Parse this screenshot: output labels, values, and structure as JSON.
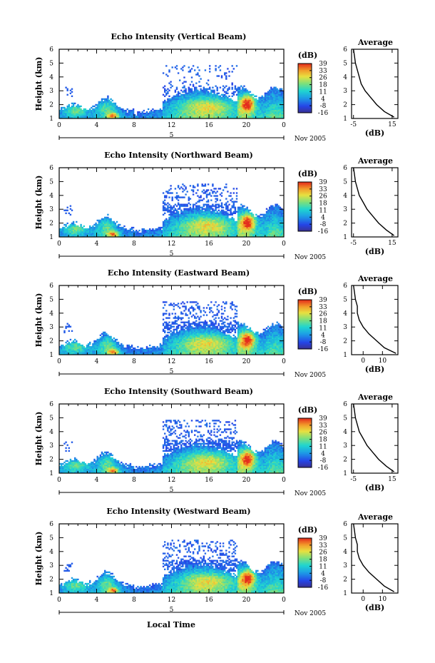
{
  "figure": {
    "date_label": "Nov 2005",
    "xlabel": "Local Time",
    "colorbar_unit": "(dB)",
    "colorbar_ticks": [
      -16,
      -8,
      4,
      11,
      18,
      26,
      33,
      39
    ],
    "height_label": "Height (km)",
    "average_title": "Average",
    "average_xlabel": "(dB)"
  },
  "chart_data": [
    {
      "type": "heatmap",
      "title": "Echo Intensity (Vertical Beam)",
      "xlabel": "Local Time",
      "ylabel": "Height (km)",
      "x_ticks": [
        "0",
        "4",
        "8",
        "12",
        "16",
        "20",
        "0"
      ],
      "xlim": [
        0,
        24
      ],
      "ylim": [
        1,
        6
      ],
      "y_ticks": [
        1,
        2,
        3,
        4,
        5,
        6
      ],
      "date_marker": "5",
      "colorbar": {
        "unit": "dB",
        "ticks": [
          -16,
          -8,
          4,
          11,
          18,
          26,
          33,
          39
        ]
      },
      "average_profile": {
        "title": "Average",
        "xlabel": "(dB)",
        "x_ticks": [
          -5,
          15
        ],
        "xlim": [
          -6,
          18
        ],
        "ylim": [
          1,
          6
        ],
        "height": [
          1.1,
          1.5,
          2.0,
          2.5,
          3.0,
          3.5,
          4.0,
          4.5,
          5.0,
          5.5,
          6.0
        ],
        "intensity": [
          16,
          11,
          7,
          4,
          1,
          -1,
          -2,
          -3,
          -4,
          -4.5,
          -5
        ]
      }
    },
    {
      "type": "heatmap",
      "title": "Echo Intensity (Northward Beam)",
      "xlabel": "Local Time",
      "ylabel": "Height (km)",
      "x_ticks": [
        "0",
        "4",
        "8",
        "12",
        "16",
        "20",
        "0"
      ],
      "xlim": [
        0,
        24
      ],
      "ylim": [
        1,
        6
      ],
      "y_ticks": [
        1,
        2,
        3,
        4,
        5,
        6
      ],
      "date_marker": "5",
      "colorbar": {
        "unit": "dB",
        "ticks": [
          -16,
          -8,
          4,
          11,
          18,
          26,
          33,
          39
        ]
      },
      "average_profile": {
        "title": "Average",
        "xlabel": "(dB)",
        "x_ticks": [
          -5,
          15
        ],
        "xlim": [
          -6,
          18
        ],
        "ylim": [
          1,
          6
        ],
        "height": [
          1.1,
          1.5,
          2.0,
          2.5,
          3.0,
          3.5,
          4.0,
          4.5,
          5.0,
          5.5,
          6.0
        ],
        "intensity": [
          16,
          12,
          8,
          5,
          2,
          0,
          -2,
          -3,
          -4,
          -4.5,
          -5
        ]
      }
    },
    {
      "type": "heatmap",
      "title": "Echo Intensity (Eastward Beam)",
      "xlabel": "Local Time",
      "ylabel": "Height (km)",
      "x_ticks": [
        "0",
        "4",
        "8",
        "12",
        "16",
        "20",
        "0"
      ],
      "xlim": [
        0,
        24
      ],
      "ylim": [
        1,
        6
      ],
      "y_ticks": [
        1,
        2,
        3,
        4,
        5,
        6
      ],
      "date_marker": "5",
      "colorbar": {
        "unit": "dB",
        "ticks": [
          -16,
          -8,
          4,
          11,
          18,
          26,
          33,
          39
        ]
      },
      "average_profile": {
        "title": "Average",
        "xlabel": "(dB)",
        "x_ticks": [
          0,
          10
        ],
        "xlim": [
          -6,
          18
        ],
        "ylim": [
          1,
          6
        ],
        "height": [
          1.1,
          1.5,
          2.0,
          2.5,
          3.0,
          3.5,
          4.0,
          4.5,
          5.0,
          5.5,
          6.0
        ],
        "intensity": [
          17,
          11,
          7,
          3,
          0,
          -2,
          -3,
          -3,
          -4,
          -4.5,
          -5
        ]
      }
    },
    {
      "type": "heatmap",
      "title": "Echo Intensity (Southward Beam)",
      "xlabel": "Local Time",
      "ylabel": "Height (km)",
      "x_ticks": [
        "0",
        "4",
        "8",
        "12",
        "16",
        "20",
        "0"
      ],
      "xlim": [
        0,
        24
      ],
      "ylim": [
        1,
        6
      ],
      "y_ticks": [
        1,
        2,
        3,
        4,
        5,
        6
      ],
      "date_marker": "5",
      "colorbar": {
        "unit": "dB",
        "ticks": [
          -16,
          -8,
          4,
          11,
          18,
          26,
          33,
          39
        ]
      },
      "average_profile": {
        "title": "Average",
        "xlabel": "(dB)",
        "x_ticks": [
          -5,
          15
        ],
        "xlim": [
          -6,
          18
        ],
        "ylim": [
          1,
          6
        ],
        "height": [
          1.1,
          1.5,
          2.0,
          2.5,
          3.0,
          3.5,
          4.0,
          4.5,
          5.0,
          5.5,
          6.0
        ],
        "intensity": [
          16,
          12,
          8,
          5,
          2,
          0,
          -2,
          -3,
          -4,
          -4.5,
          -5
        ]
      }
    },
    {
      "type": "heatmap",
      "title": "Echo Intensity (Westward Beam)",
      "xlabel": "Local Time",
      "ylabel": "Height (km)",
      "x_ticks": [
        "0",
        "4",
        "8",
        "12",
        "16",
        "20",
        "0"
      ],
      "xlim": [
        0,
        24
      ],
      "ylim": [
        1,
        6
      ],
      "y_ticks": [
        1,
        2,
        3,
        4,
        5,
        6
      ],
      "date_marker": "5",
      "colorbar": {
        "unit": "dB",
        "ticks": [
          -16,
          -8,
          4,
          11,
          18,
          26,
          33,
          39
        ]
      },
      "average_profile": {
        "title": "Average",
        "xlabel": "(dB)",
        "x_ticks": [
          0,
          10
        ],
        "xlim": [
          -6,
          18
        ],
        "ylim": [
          1,
          6
        ],
        "height": [
          1.1,
          1.5,
          2.0,
          2.5,
          3.0,
          3.5,
          4.0,
          4.5,
          5.0,
          5.5,
          6.0
        ],
        "intensity": [
          16,
          11,
          7,
          3,
          0,
          -2,
          -3,
          -3,
          -4,
          -4.5,
          -5
        ]
      }
    }
  ]
}
